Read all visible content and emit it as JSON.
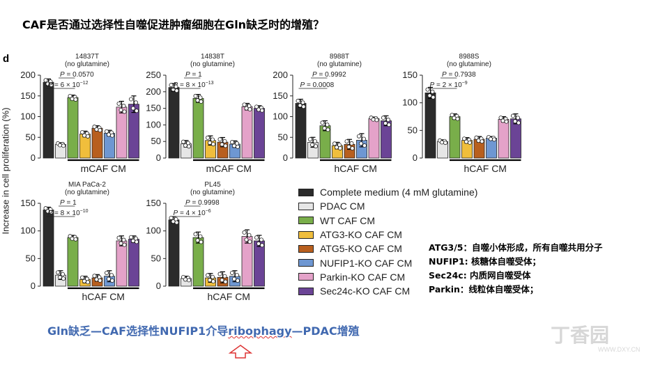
{
  "title": "CAF是否通过选择性自噬促进肿瘤细胞在Gln缺乏时的增殖？",
  "panel_letter": "d",
  "y_axis_label": "Increase in cell proliferation (%)",
  "colors": [
    "#2b2b2b",
    "#e6e6e6",
    "#79ae4a",
    "#f0be3c",
    "#b85f1e",
    "#6e97d2",
    "#e4a2c9",
    "#6b4496"
  ],
  "legend": {
    "items": [
      "Complete medium (4 mM glutamine)",
      "PDAC CM",
      "WT CAF CM",
      "ATG3-KO CAF CM",
      "ATG5-KO CAF CM",
      "NUFIP1-KO CAF CM",
      "Parkin-KO CAF CM",
      "Sec24c-KO CAF CM"
    ]
  },
  "notes": [
    "ATG3/5：自噬小体形成，所有自噬共用分子",
    "NUFIP1: 核糖体自噬受体；",
    "Sec24c: 内质网自噬受体",
    "Parkin：线粒体自噬受体；"
  ],
  "bottom_text": {
    "before": "Gln缺乏—CAF选择性NUFIP1介导",
    "highlight": "ribophagy",
    "after": "—PDAC增殖"
  },
  "watermark": {
    "main": "丁香园",
    "sub": "WWW.DXY.CN"
  },
  "chart_data": [
    {
      "type": "bar",
      "title": "14837T",
      "subtitle": "(no glutamine)",
      "xlabel": "mCAF CM",
      "ylim": [
        0,
        200
      ],
      "yticks": [
        0,
        50,
        100,
        150,
        200
      ],
      "categories": [
        "Complete medium (4 mM glutamine)",
        "PDAC CM",
        "WT CAF CM",
        "ATG3-KO CAF CM",
        "ATG5-KO CAF CM",
        "NUFIP1-KO CAF CM",
        "Parkin-KO CAF CM",
        "Sec24c-KO CAF CM"
      ],
      "values": [
        183,
        33,
        146,
        58,
        72,
        60,
        123,
        130
      ],
      "errors": [
        8,
        4,
        6,
        7,
        6,
        7,
        14,
        20
      ],
      "annotations": [
        {
          "text": "P = 0.0570",
          "from": 1,
          "to": 2
        },
        {
          "text": "P = 6 × 10",
          "exp": "−12",
          "from": 0,
          "to": 2
        }
      ]
    },
    {
      "type": "bar",
      "title": "14838T",
      "subtitle": "(no glutamine)",
      "xlabel": "mCAF CM",
      "ylim": [
        0,
        250
      ],
      "yticks": [
        0,
        50,
        100,
        150,
        200,
        250
      ],
      "categories": [
        "Complete medium (4 mM glutamine)",
        "PDAC CM",
        "WT CAF CM",
        "ATG3-KO CAF CM",
        "ATG5-KO CAF CM",
        "NUFIP1-KO CAF CM",
        "Parkin-KO CAF CM",
        "Sec24c-KO CAF CM"
      ],
      "values": [
        213,
        43,
        180,
        53,
        48,
        42,
        155,
        150
      ],
      "errors": [
        12,
        10,
        12,
        14,
        14,
        10,
        10,
        8
      ],
      "annotations": [
        {
          "text": "P = 1",
          "from": 1,
          "to": 2
        },
        {
          "text": "P = 8 × 10",
          "exp": "−13",
          "from": 0,
          "to": 2
        }
      ]
    },
    {
      "type": "bar",
      "title": "8988T",
      "subtitle": "(no glutamine)",
      "xlabel": "hCAF CM",
      "ylim": [
        0,
        200
      ],
      "yticks": [
        0,
        50,
        100,
        150,
        200
      ],
      "categories": [
        "Complete medium (4 mM glutamine)",
        "PDAC CM",
        "WT CAF CM",
        "ATG3-KO CAF CM",
        "ATG5-KO CAF CM",
        "NUFIP1-KO CAF CM",
        "Parkin-KO CAF CM",
        "Sec24c-KO CAF CM"
      ],
      "values": [
        132,
        38,
        78,
        30,
        33,
        43,
        95,
        90
      ],
      "errors": [
        10,
        12,
        12,
        8,
        12,
        16,
        4,
        12
      ],
      "annotations": [
        {
          "text": "P = 0.9992",
          "from": 1,
          "to": 2
        },
        {
          "text": "P = 0.0008",
          "from": 0,
          "to": 2
        }
      ]
    },
    {
      "type": "bar",
      "title": "8988S",
      "subtitle": "(no glutamine)",
      "xlabel": "hCAF CM",
      "ylim": [
        0,
        150
      ],
      "yticks": [
        0,
        50,
        100,
        150
      ],
      "categories": [
        "Complete medium (4 mM glutamine)",
        "PDAC CM",
        "WT CAF CM",
        "ATG3-KO CAF CM",
        "ATG5-KO CAF CM",
        "NUFIP1-KO CAF CM",
        "Parkin-KO CAF CM",
        "Sec24c-KO CAF CM"
      ],
      "values": [
        118,
        30,
        75,
        32,
        34,
        36,
        70,
        71
      ],
      "errors": [
        10,
        3,
        5,
        5,
        5,
        3,
        5,
        9
      ],
      "annotations": [
        {
          "text": "P = 0.7938",
          "from": 1,
          "to": 2
        },
        {
          "text": "P = 2 × 10",
          "exp": "−9",
          "from": 0,
          "to": 2
        }
      ]
    },
    {
      "type": "bar",
      "title": "MIA PaCa-2",
      "subtitle": "(no glutamine)",
      "xlabel": "hCAF CM",
      "ylim": [
        0,
        150
      ],
      "yticks": [
        0,
        50,
        100,
        150
      ],
      "categories": [
        "Complete medium (4 mM glutamine)",
        "PDAC CM",
        "WT CAF CM",
        "ATG3-KO CAF CM",
        "ATG5-KO CAF CM",
        "NUFIP1-KO CAF CM",
        "Parkin-KO CAF CM",
        "Sec24c-KO CAF CM"
      ],
      "values": [
        138,
        20,
        88,
        12,
        15,
        18,
        82,
        85
      ],
      "errors": [
        5,
        8,
        4,
        6,
        6,
        10,
        9,
        6
      ],
      "annotations": [
        {
          "text": "P = 1",
          "from": 1,
          "to": 2
        },
        {
          "text": "P = 8 × 10",
          "exp": "−10",
          "from": 0,
          "to": 2
        }
      ]
    },
    {
      "type": "bar",
      "title": "PL45",
      "subtitle": "(no glutamine)",
      "xlabel": "hCAF CM",
      "ylim": [
        0,
        150
      ],
      "yticks": [
        0,
        50,
        100,
        150
      ],
      "categories": [
        "Complete medium (4 mM glutamine)",
        "PDAC CM",
        "WT CAF CM",
        "ATG3-KO CAF CM",
        "ATG5-KO CAF CM",
        "NUFIP1-KO CAF CM",
        "Parkin-KO CAF CM",
        "Sec24c-KO CAF CM"
      ],
      "values": [
        120,
        14,
        88,
        15,
        16,
        18,
        90,
        82
      ],
      "errors": [
        6,
        4,
        10,
        8,
        10,
        10,
        12,
        10
      ],
      "annotations": [
        {
          "text": "P = 0.9998",
          "from": 1,
          "to": 2
        },
        {
          "text": "P = 4 × 10",
          "exp": "−6",
          "from": 0,
          "to": 2
        }
      ]
    }
  ]
}
